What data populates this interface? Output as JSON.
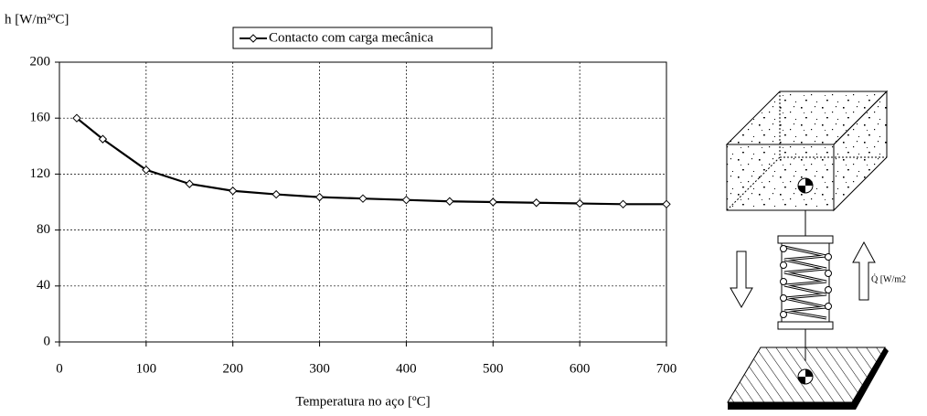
{
  "chart_data": {
    "type": "line",
    "y_label": "h [W/m²ºC]",
    "x_label": "Temperatura no aço [ºC]",
    "x": [
      20,
      50,
      100,
      150,
      200,
      250,
      300,
      350,
      400,
      450,
      500,
      550,
      600,
      650,
      700
    ],
    "series": [
      {
        "name": "Contacto com carga mecânica",
        "color": "#000000",
        "values": [
          160,
          145,
          123,
          113,
          108,
          105.5,
          103.5,
          102.5,
          101.5,
          100.5,
          100,
          99.5,
          99,
          98.5,
          98.5
        ]
      }
    ],
    "xlim": [
      0,
      700
    ],
    "xticks": [
      0,
      100,
      200,
      300,
      400,
      500,
      600,
      700
    ],
    "ylim": [
      0,
      200
    ],
    "yticks": [
      0,
      40,
      80,
      120,
      160,
      200
    ],
    "grid": true,
    "legend": "top",
    "annotations": [
      "Q̇ [W/m2"
    ]
  }
}
